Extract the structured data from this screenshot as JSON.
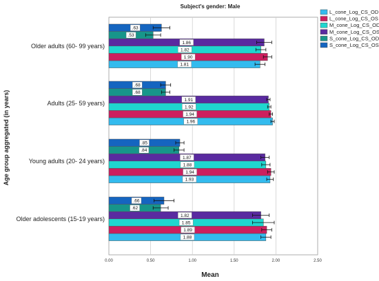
{
  "chart_data": {
    "type": "bar",
    "orientation": "horizontal",
    "title": "Subject's gender: Male",
    "xlabel": "Mean",
    "ylabel": "Age group aggregated (in years)",
    "xlim": [
      0,
      2.5
    ],
    "xticks": [
      "0.00",
      "0.50",
      "1.00",
      "1.50",
      "2.00",
      "2.50"
    ],
    "grid": "vertical",
    "legend_position": "top-right",
    "categories": [
      "Older adults (60- 99 years)",
      "Adults (25- 59 years)",
      "Young adults (20- 24 years)",
      "Older adolescents (15-19 years)"
    ],
    "series_order_bottom_to_top": [
      "L_cone_Log_CS_OD",
      "L_cone_Log_CS_OS",
      "M_cone_Log_CS_OD",
      "M_cone_Log_CS_OS",
      "S_cone_Log_CS_OD",
      "S_cone_Log_CS_OS"
    ],
    "series": [
      {
        "name": "L_cone_Log_CS_OD",
        "color": "#33bbee",
        "values": [
          1.81,
          1.96,
          1.93,
          1.88
        ],
        "labels": [
          "1.81",
          "1.96",
          "1.93",
          "1.88"
        ],
        "errors": [
          0.06,
          0.02,
          0.04,
          0.06
        ]
      },
      {
        "name": "L_cone_Log_CS_OS",
        "color": "#cc1f5e",
        "values": [
          1.9,
          1.94,
          1.94,
          1.89
        ],
        "labels": [
          "1.90",
          "1.94",
          "1.94",
          "1.89"
        ],
        "errors": [
          0.05,
          0.02,
          0.04,
          0.06
        ]
      },
      {
        "name": "M_cone_Log_CS_OD",
        "color": "#1fd6cf",
        "values": [
          1.82,
          1.92,
          1.88,
          1.85
        ],
        "labels": [
          "1.82",
          "1.92",
          "1.88",
          "1.85"
        ],
        "errors": [
          0.06,
          0.02,
          0.05,
          0.13
        ]
      },
      {
        "name": "M_cone_Log_CS_OS",
        "color": "#5a2aa0",
        "values": [
          1.86,
          1.91,
          1.87,
          1.82
        ],
        "labels": [
          "1.86",
          "1.91",
          "1.87",
          "1.82"
        ],
        "errors": [
          0.09,
          0.02,
          0.05,
          0.1
        ]
      },
      {
        "name": "S_cone_Log_CS_OD",
        "color": "#17958a",
        "values": [
          0.53,
          0.68,
          0.84,
          0.62
        ],
        "labels": ".53",
        "labels_list": [
          ".53",
          ".68",
          ".84",
          ".62"
        ],
        "errors": [
          0.09,
          0.05,
          0.06,
          0.09
        ]
      },
      {
        "name": "S_cone_Log_CS_OS",
        "color": "#1565c0",
        "values": [
          0.63,
          0.68,
          0.85,
          0.66
        ],
        "labels": ".63",
        "labels_list": [
          ".63",
          ".68",
          ".85",
          ".66"
        ],
        "errors": [
          0.1,
          0.06,
          0.05,
          0.12
        ]
      }
    ]
  }
}
